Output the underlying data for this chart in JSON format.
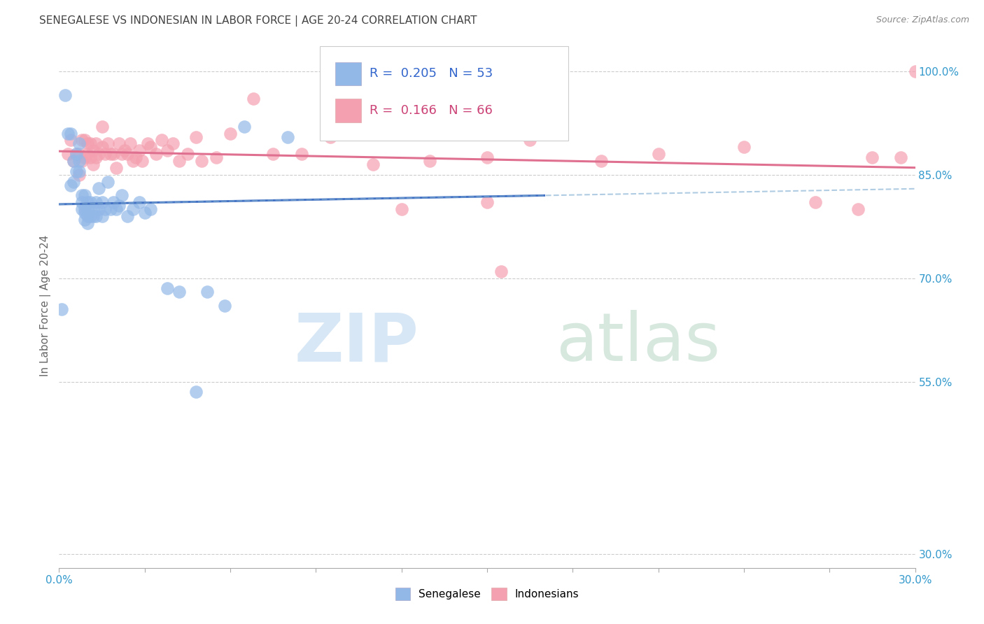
{
  "title": "SENEGALESE VS INDONESIAN IN LABOR FORCE | AGE 20-24 CORRELATION CHART",
  "source": "Source: ZipAtlas.com",
  "ylabel": "In Labor Force | Age 20-24",
  "xlim": [
    0.0,
    0.3
  ],
  "ylim": [
    0.28,
    1.04
  ],
  "ytick_positions": [
    0.3,
    0.55,
    0.7,
    0.85,
    1.0
  ],
  "yticklabels": [
    "30.0%",
    "55.0%",
    "70.0%",
    "85.0%",
    "100.0%"
  ],
  "xtick_positions": [
    0.0,
    0.03,
    0.06,
    0.09,
    0.12,
    0.15,
    0.18,
    0.21,
    0.24,
    0.27,
    0.3
  ],
  "legend_r_blue": "0.205",
  "legend_n_blue": "53",
  "legend_r_pink": "0.166",
  "legend_n_pink": "66",
  "blue_color": "#92b8e8",
  "pink_color": "#f4a0b0",
  "trendline_blue": "#4472c4",
  "trendline_pink": "#e07090",
  "senegalese_x": [
    0.001,
    0.002,
    0.003,
    0.004,
    0.004,
    0.005,
    0.005,
    0.006,
    0.006,
    0.007,
    0.007,
    0.007,
    0.008,
    0.008,
    0.008,
    0.009,
    0.009,
    0.009,
    0.009,
    0.01,
    0.01,
    0.01,
    0.01,
    0.011,
    0.011,
    0.012,
    0.012,
    0.013,
    0.013,
    0.014,
    0.014,
    0.015,
    0.015,
    0.016,
    0.017,
    0.018,
    0.019,
    0.02,
    0.021,
    0.022,
    0.024,
    0.026,
    0.028,
    0.03,
    0.032,
    0.038,
    0.042,
    0.048,
    0.052,
    0.058,
    0.065,
    0.08,
    0.17
  ],
  "senegalese_y": [
    0.655,
    0.965,
    0.91,
    0.835,
    0.91,
    0.84,
    0.87,
    0.855,
    0.88,
    0.855,
    0.87,
    0.895,
    0.8,
    0.81,
    0.82,
    0.785,
    0.795,
    0.8,
    0.82,
    0.78,
    0.79,
    0.8,
    0.81,
    0.79,
    0.81,
    0.79,
    0.8,
    0.79,
    0.81,
    0.8,
    0.83,
    0.79,
    0.81,
    0.8,
    0.84,
    0.8,
    0.81,
    0.8,
    0.805,
    0.82,
    0.79,
    0.8,
    0.81,
    0.795,
    0.8,
    0.685,
    0.68,
    0.535,
    0.68,
    0.66,
    0.92,
    0.905,
    0.96
  ],
  "indonesian_x": [
    0.003,
    0.004,
    0.005,
    0.006,
    0.007,
    0.007,
    0.008,
    0.008,
    0.009,
    0.009,
    0.01,
    0.01,
    0.011,
    0.011,
    0.012,
    0.012,
    0.013,
    0.013,
    0.014,
    0.015,
    0.015,
    0.016,
    0.017,
    0.018,
    0.019,
    0.02,
    0.021,
    0.022,
    0.023,
    0.024,
    0.025,
    0.026,
    0.027,
    0.028,
    0.029,
    0.031,
    0.032,
    0.034,
    0.036,
    0.038,
    0.04,
    0.042,
    0.045,
    0.048,
    0.05,
    0.055,
    0.06,
    0.068,
    0.075,
    0.085,
    0.095,
    0.11,
    0.13,
    0.15,
    0.165,
    0.19,
    0.21,
    0.24,
    0.265,
    0.285,
    0.155,
    0.12,
    0.295,
    0.15,
    0.28,
    0.3
  ],
  "indonesian_y": [
    0.88,
    0.9,
    0.87,
    0.88,
    0.85,
    0.88,
    0.87,
    0.9,
    0.875,
    0.9,
    0.88,
    0.895,
    0.875,
    0.895,
    0.865,
    0.885,
    0.875,
    0.895,
    0.88,
    0.89,
    0.92,
    0.88,
    0.895,
    0.88,
    0.88,
    0.86,
    0.895,
    0.88,
    0.885,
    0.88,
    0.895,
    0.87,
    0.875,
    0.885,
    0.87,
    0.895,
    0.89,
    0.88,
    0.9,
    0.885,
    0.895,
    0.87,
    0.88,
    0.905,
    0.87,
    0.875,
    0.91,
    0.96,
    0.88,
    0.88,
    0.905,
    0.865,
    0.87,
    0.875,
    0.9,
    0.87,
    0.88,
    0.89,
    0.81,
    0.875,
    0.71,
    0.8,
    0.875,
    0.81,
    0.8,
    1.0
  ]
}
